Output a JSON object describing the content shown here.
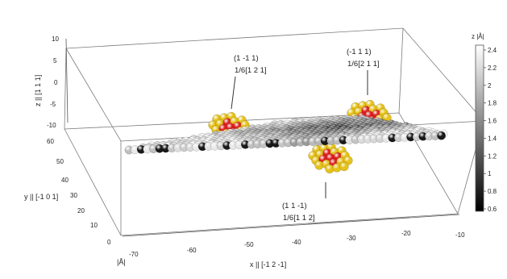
{
  "chart_data": {
    "type": "scatter",
    "subtype": "3d-atomic-surface",
    "axes": {
      "x": {
        "label": "x || [-1 2 -1]",
        "ticks": [
          "-70",
          "-60",
          "-50",
          "-40",
          "-30",
          "-20",
          "-10"
        ],
        "range": [
          -70,
          -10
        ]
      },
      "y": {
        "label": "y || [-1 0 1]",
        "ticks": [
          "0",
          "10",
          "20",
          "30",
          "40",
          "50",
          "60"
        ],
        "range": [
          0,
          60
        ]
      },
      "z": {
        "label": "z || [1 1 1]",
        "ticks": [
          "10",
          "5",
          "0",
          "-5",
          "-10"
        ],
        "range": [
          -10,
          10
        ]
      },
      "unit_label": "|Å|"
    },
    "colorbar": {
      "title": "z |Å|",
      "ticks": [
        "2.4",
        "2.2",
        "2",
        "1.8",
        "1.6",
        "1.4",
        "1.2",
        "1",
        "0.8",
        "0.6"
      ],
      "range": [
        0.6,
        2.4
      ],
      "colormap": [
        "#000000",
        "#ffffff"
      ]
    },
    "annotations": [
      {
        "line1": "(1 -1 1)",
        "line2": "1/6[1 2 1]"
      },
      {
        "line1": "(-1 1 1)",
        "line2": "1/6[2 1 1]"
      },
      {
        "line1": "(1 1 -1)",
        "line2": "1/6[1 1 2]"
      }
    ],
    "grid": false,
    "legend": "right",
    "highlight_colors": {
      "defect_core": "#e02020",
      "defect_ring": "#e6c21a"
    }
  }
}
